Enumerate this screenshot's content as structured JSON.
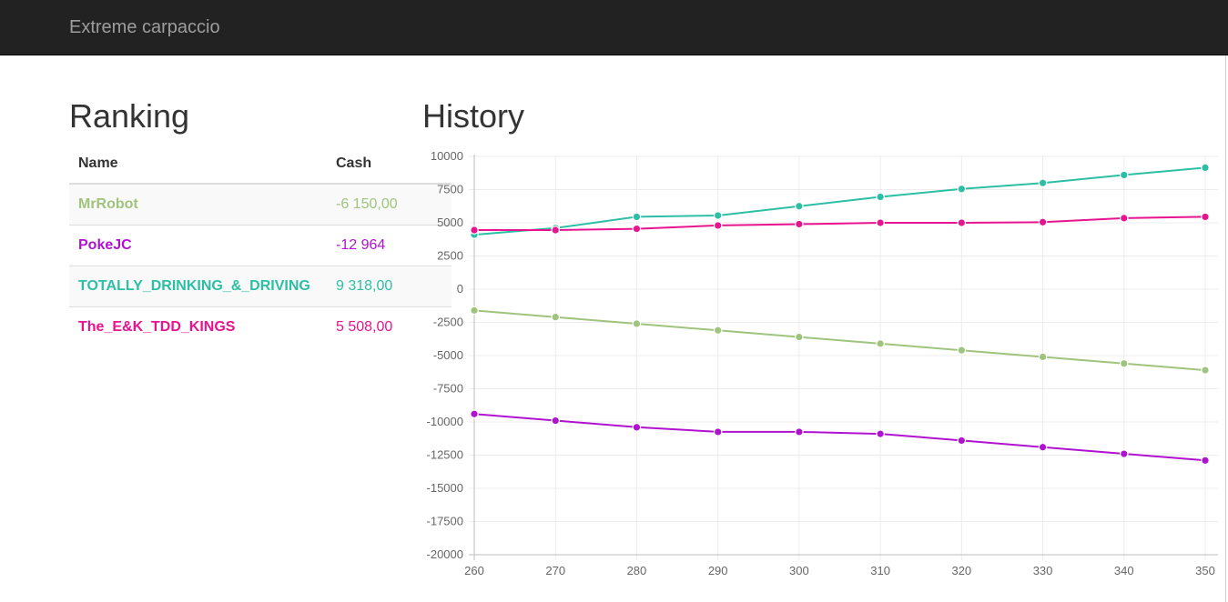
{
  "navbar": {
    "brand": "Extreme carpaccio"
  },
  "ranking": {
    "title": "Ranking",
    "columns": {
      "name": "Name",
      "cash": "Cash"
    },
    "rows": [
      {
        "name": "MrRobot",
        "cash": "-6 150,00",
        "color": "#9ec47d"
      },
      {
        "name": "PokeJC",
        "cash": "-12 964",
        "color": "#b012d0"
      },
      {
        "name": "TOTALLY_DRINKING_&_DRIVING",
        "cash": "9 318,00",
        "color": "#2dbfa5"
      },
      {
        "name": "The_E&K_TDD_KINGS",
        "cash": "5 508,00",
        "color": "#e8148f"
      }
    ]
  },
  "history": {
    "title": "History"
  },
  "chart_data": {
    "type": "line",
    "title": "",
    "xlabel": "",
    "ylabel": "",
    "x": [
      260,
      270,
      280,
      290,
      300,
      310,
      320,
      330,
      340,
      350
    ],
    "xlim": [
      260,
      350
    ],
    "ylim": [
      -20000,
      10000
    ],
    "y_ticks": [
      10000,
      7500,
      5000,
      2500,
      0,
      -2500,
      -5000,
      -7500,
      -10000,
      -12500,
      -15000,
      -17500,
      -20000
    ],
    "grid": true,
    "series": [
      {
        "color": "#9ec47d",
        "values": [
          -1600,
          -2100,
          -2600,
          -3100,
          -3600,
          -4100,
          -4600,
          -5100,
          -5600,
          -6100
        ]
      },
      {
        "color": "#b012d0",
        "values": [
          -9400,
          -9900,
          -10400,
          -10750,
          -10750,
          -10900,
          -11400,
          -11900,
          -12400,
          -12900
        ]
      },
      {
        "color": "#2dbfa5",
        "values": [
          4100,
          4600,
          5450,
          5550,
          6250,
          6950,
          7550,
          8000,
          8600,
          9150
        ]
      },
      {
        "color": "#e8148f",
        "values": [
          4450,
          4450,
          4550,
          4800,
          4900,
          5000,
          5000,
          5050,
          5350,
          5450
        ]
      }
    ]
  }
}
